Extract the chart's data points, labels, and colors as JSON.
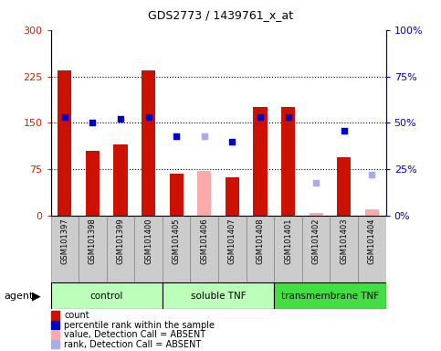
{
  "title": "GDS2773 / 1439761_x_at",
  "samples": [
    "GSM101397",
    "GSM101398",
    "GSM101399",
    "GSM101400",
    "GSM101405",
    "GSM101406",
    "GSM101407",
    "GSM101408",
    "GSM101401",
    "GSM101402",
    "GSM101403",
    "GSM101404"
  ],
  "bar_values": [
    235,
    105,
    115,
    235,
    68,
    null,
    62,
    175,
    175,
    null,
    95,
    null
  ],
  "bar_absent_values": [
    null,
    null,
    null,
    null,
    null,
    72,
    null,
    null,
    null,
    5,
    null,
    10
  ],
  "bar_color": "#cc1100",
  "bar_absent_color": "#ffaaaa",
  "rank_values": [
    53,
    50,
    52,
    53,
    43,
    null,
    40,
    53,
    53,
    null,
    46,
    null
  ],
  "rank_absent_values": [
    null,
    null,
    null,
    null,
    null,
    43,
    null,
    null,
    null,
    18,
    null,
    22
  ],
  "rank_color": "#0000cc",
  "rank_absent_color": "#aaaaee",
  "yticks_left": [
    0,
    75,
    150,
    225,
    300
  ],
  "ytick_labels_left": [
    "0",
    "75",
    "150",
    "225",
    "300"
  ],
  "yticks_right_pct": [
    0,
    25,
    50,
    75,
    100
  ],
  "ytick_labels_right": [
    "0%",
    "25%",
    "50%",
    "75%",
    "100%"
  ],
  "hlines": [
    75,
    150,
    225
  ],
  "bar_width": 0.5,
  "group_defs": [
    {
      "label": "control",
      "color": "#bbffbb",
      "start": 0,
      "end": 4
    },
    {
      "label": "soluble TNF",
      "color": "#bbffbb",
      "start": 4,
      "end": 8
    },
    {
      "label": "transmembrane TNF",
      "color": "#44dd44",
      "start": 8,
      "end": 12
    }
  ],
  "xticklabel_bg": "#cccccc",
  "left_color": "#cc2200",
  "right_color": "#0000cc"
}
